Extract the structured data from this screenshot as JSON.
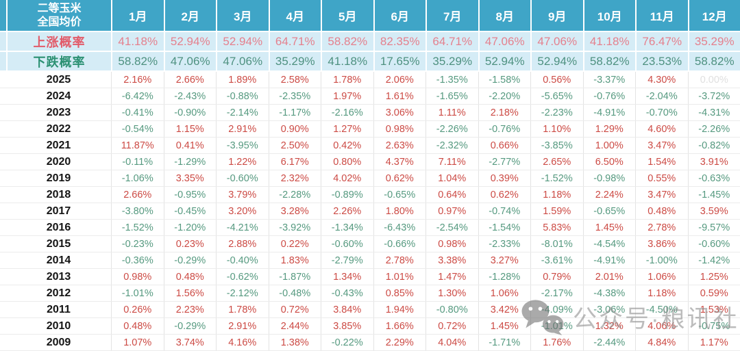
{
  "chart_data": {
    "type": "table",
    "corner_header": [
      "二等玉米",
      "全国均价"
    ],
    "columns": [
      "1月",
      "2月",
      "3月",
      "4月",
      "5月",
      "6月",
      "7月",
      "8月",
      "9月",
      "10月",
      "11月",
      "12月"
    ],
    "probability_rows": [
      {
        "label": "上涨概率",
        "direction": "up",
        "values": [
          "41.18%",
          "52.94%",
          "52.94%",
          "64.71%",
          "58.82%",
          "82.35%",
          "64.71%",
          "47.06%",
          "47.06%",
          "41.18%",
          "76.47%",
          "35.29%"
        ]
      },
      {
        "label": "下跌概率",
        "direction": "down",
        "values": [
          "58.82%",
          "47.06%",
          "47.06%",
          "35.29%",
          "41.18%",
          "17.65%",
          "35.29%",
          "52.94%",
          "52.94%",
          "58.82%",
          "23.53%",
          "58.82%"
        ]
      }
    ],
    "year_rows": [
      {
        "year": "2025",
        "values": [
          "2.16%",
          "2.66%",
          "1.89%",
          "2.58%",
          "1.78%",
          "2.06%",
          "-1.35%",
          "-1.58%",
          "0.56%",
          "-3.37%",
          "4.30%",
          "0.00%"
        ],
        "muted": [
          11
        ]
      },
      {
        "year": "2024",
        "values": [
          "-6.42%",
          "-2.43%",
          "-0.88%",
          "-2.35%",
          "1.97%",
          "1.61%",
          "-1.65%",
          "-2.20%",
          "-5.65%",
          "-0.76%",
          "-2.04%",
          "-3.72%"
        ]
      },
      {
        "year": "2023",
        "values": [
          "-0.41%",
          "-0.90%",
          "-2.14%",
          "-1.17%",
          "-2.16%",
          "3.06%",
          "1.11%",
          "2.18%",
          "-2.23%",
          "-4.91%",
          "-0.70%",
          "-4.31%"
        ]
      },
      {
        "year": "2022",
        "values": [
          "-0.54%",
          "1.15%",
          "2.91%",
          "0.90%",
          "1.27%",
          "0.98%",
          "-2.26%",
          "-0.76%",
          "1.10%",
          "1.29%",
          "4.60%",
          "-2.26%"
        ]
      },
      {
        "year": "2021",
        "values": [
          "11.87%",
          "0.41%",
          "-3.95%",
          "2.50%",
          "0.42%",
          "2.63%",
          "-2.32%",
          "0.66%",
          "-3.85%",
          "1.00%",
          "3.47%",
          "-0.82%"
        ]
      },
      {
        "year": "2020",
        "values": [
          "-0.11%",
          "-1.29%",
          "1.22%",
          "6.17%",
          "0.80%",
          "4.37%",
          "7.11%",
          "-2.77%",
          "2.65%",
          "6.50%",
          "1.54%",
          "3.91%"
        ]
      },
      {
        "year": "2019",
        "values": [
          "-1.06%",
          "3.35%",
          "-0.60%",
          "2.32%",
          "4.02%",
          "0.62%",
          "1.04%",
          "0.39%",
          "-1.52%",
          "-0.98%",
          "0.55%",
          "-0.63%"
        ]
      },
      {
        "year": "2018",
        "values": [
          "2.66%",
          "-0.95%",
          "3.79%",
          "-2.28%",
          "-0.89%",
          "-0.65%",
          "0.64%",
          "0.62%",
          "1.18%",
          "2.24%",
          "3.47%",
          "-1.45%"
        ]
      },
      {
        "year": "2017",
        "values": [
          "-3.80%",
          "-0.45%",
          "3.20%",
          "3.28%",
          "2.26%",
          "1.80%",
          "0.97%",
          "-0.74%",
          "1.59%",
          "-0.65%",
          "0.48%",
          "3.59%"
        ]
      },
      {
        "year": "2016",
        "values": [
          "-1.52%",
          "-1.20%",
          "-4.21%",
          "-3.92%",
          "-1.34%",
          "-6.43%",
          "-2.54%",
          "-1.54%",
          "5.83%",
          "1.45%",
          "2.78%",
          "-9.57%"
        ]
      },
      {
        "year": "2015",
        "values": [
          "-0.23%",
          "0.23%",
          "2.88%",
          "0.22%",
          "-0.60%",
          "-0.66%",
          "0.98%",
          "-2.33%",
          "-8.01%",
          "-4.54%",
          "3.86%",
          "-0.60%"
        ]
      },
      {
        "year": "2014",
        "values": [
          "-0.36%",
          "-0.29%",
          "-0.40%",
          "1.83%",
          "-2.79%",
          "2.78%",
          "3.38%",
          "3.27%",
          "-3.61%",
          "-4.91%",
          "-1.00%",
          "-1.42%"
        ]
      },
      {
        "year": "2013",
        "values": [
          "0.98%",
          "0.48%",
          "-0.62%",
          "-1.87%",
          "1.34%",
          "1.01%",
          "1.47%",
          "-1.28%",
          "0.79%",
          "2.01%",
          "1.06%",
          "1.25%"
        ]
      },
      {
        "year": "2012",
        "values": [
          "-1.01%",
          "1.56%",
          "-2.12%",
          "-0.48%",
          "-0.43%",
          "0.85%",
          "1.30%",
          "1.06%",
          "-2.17%",
          "-4.38%",
          "1.18%",
          "0.59%"
        ]
      },
      {
        "year": "2011",
        "values": [
          "0.26%",
          "2.23%",
          "1.78%",
          "0.72%",
          "3.84%",
          "1.94%",
          "-0.80%",
          "3.42%",
          "-4.09%",
          "-3.06%",
          "-4.50%",
          "1.53%"
        ]
      },
      {
        "year": "2010",
        "values": [
          "0.48%",
          "-0.29%",
          "2.91%",
          "2.44%",
          "3.85%",
          "1.66%",
          "0.72%",
          "1.45%",
          "-1.01%",
          "1.32%",
          "4.06%",
          "-0.75%"
        ]
      },
      {
        "year": "2009",
        "values": [
          "1.07%",
          "3.74%",
          "4.16%",
          "1.38%",
          "-0.22%",
          "2.29%",
          "4.04%",
          "-1.71%",
          "1.76%",
          "-2.44%",
          "4.84%",
          "1.17%"
        ]
      }
    ]
  },
  "watermark": {
    "text": "公众号·粮讯社",
    "icon": "wechat-icon"
  },
  "colors": {
    "header_bg": "#3fa5c7",
    "prob_row_bg": "#d5ecf6",
    "rise_label": "#e25b69",
    "rise_value": "#e5808d",
    "fall_label": "#2c9173",
    "fall_value": "#4e9180",
    "positive_text": "#cc4a44",
    "negative_text": "#55997f",
    "muted_text": "#e0e0e0"
  }
}
